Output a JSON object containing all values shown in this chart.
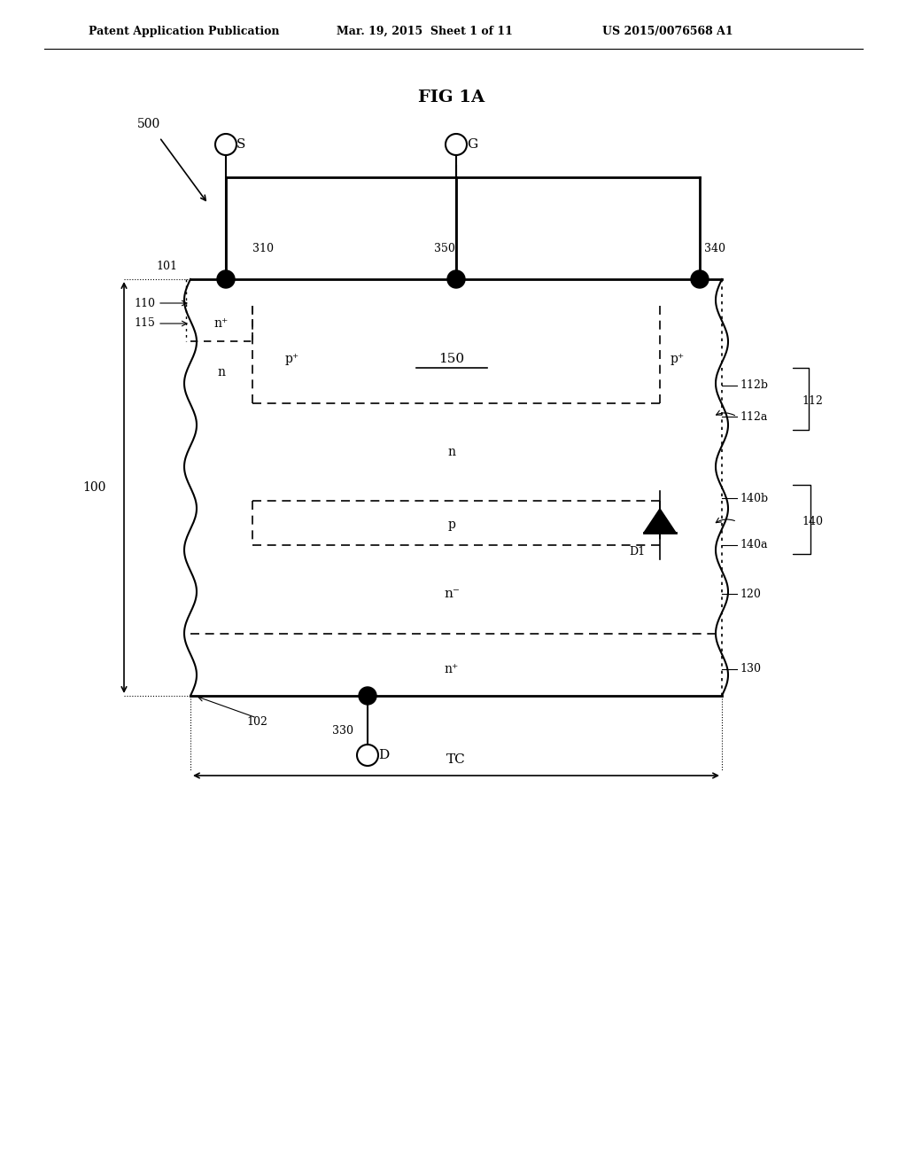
{
  "bg_color": "#ffffff",
  "header_text1": "Patent Application Publication",
  "header_text2": "Mar. 19, 2015  Sheet 1 of 11",
  "header_text3": "US 2015/0076568 A1",
  "fig_title": "FIG 1A",
  "label_500": "500",
  "label_100": "100",
  "label_101": "101",
  "label_102": "102",
  "label_110": "110",
  "label_115": "115",
  "label_120": "120",
  "label_130": "130",
  "label_140": "140",
  "label_140a": "140a",
  "label_140b": "140b",
  "label_112": "112",
  "label_112a": "112a",
  "label_112b": "112b",
  "label_150": "150",
  "label_310": "310",
  "label_330": "330",
  "label_340": "340",
  "label_350": "350",
  "label_D1": "D1",
  "label_S": "S",
  "label_G": "G",
  "label_D": "D",
  "label_TC": "TC",
  "text_nplus_top": "n⁺",
  "text_pplus_150": "p⁺",
  "text_150": "150",
  "text_n_left": "n",
  "text_n_mid": "n",
  "text_p": "p",
  "text_nminus": "n⁻",
  "text_nplus_bot": "n⁺",
  "text_pplus_right": "p⁺"
}
